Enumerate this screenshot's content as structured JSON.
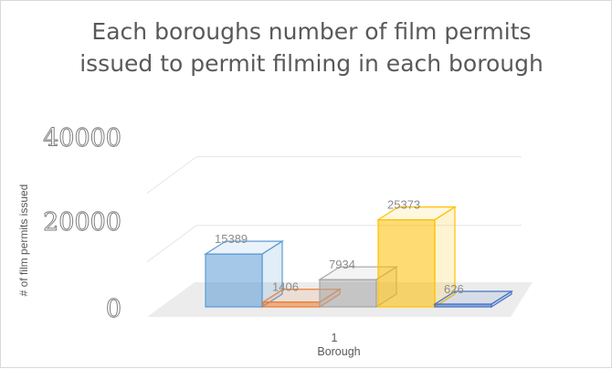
{
  "chart_data": {
    "type": "bar",
    "title": "Each boroughs number  of film permits issued to permit filming in each borough",
    "ylabel": "# of film permits issued",
    "xlabel": "Borough",
    "categories": [
      "1"
    ],
    "ylim": [
      0,
      40000
    ],
    "yticks": [
      "0",
      "20000",
      "40000"
    ],
    "grid": true,
    "legend": "none",
    "series": [
      {
        "values": [
          15389
        ],
        "color": "#5b9bd5"
      },
      {
        "values": [
          1406
        ],
        "color": "#ed7d31"
      },
      {
        "values": [
          7934
        ],
        "color": "#a5a5a5"
      },
      {
        "values": [
          25373
        ],
        "color": "#ffc000"
      },
      {
        "values": [
          626
        ],
        "color": "#4472c4"
      }
    ]
  }
}
